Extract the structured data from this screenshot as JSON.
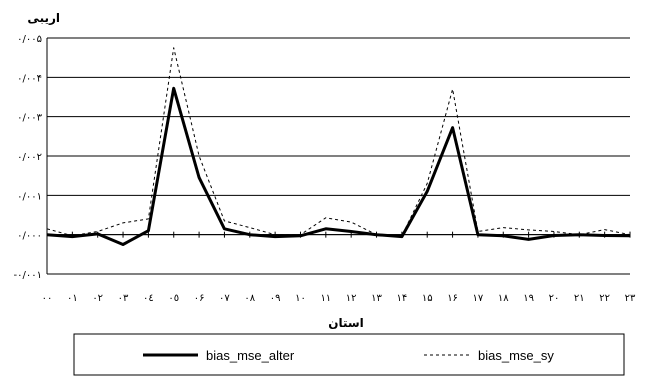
{
  "chart_data": {
    "type": "line",
    "ylabel": "اریبی",
    "xlabel": "استان",
    "x": [
      "٠٠",
      "٠١",
      "٠٢",
      "٠٣",
      "٠٤",
      "٠٥",
      "٠۶",
      "٠٧",
      "٠٨",
      "٠٩",
      "١٠",
      "١١",
      "١٢",
      "١٣",
      "١۴",
      "١۵",
      "١۶",
      "١٧",
      "١٨",
      "١٩",
      "٢٠",
      "٢١",
      "٢٢",
      "٢٣"
    ],
    "y_ticks": [
      {
        "value": 0.005,
        "label": "٠/٠٠۵"
      },
      {
        "value": 0.004,
        "label": "٠/٠٠۴"
      },
      {
        "value": 0.003,
        "label": "٠/٠٠٣"
      },
      {
        "value": 0.002,
        "label": "٠/٠٠٢"
      },
      {
        "value": 0.001,
        "label": "٠/٠٠١"
      },
      {
        "value": 0.0,
        "label": "٠/٠٠٠"
      },
      {
        "value": -0.001,
        "label": "-٠/٠٠١"
      }
    ],
    "ylim": [
      -0.001,
      0.005
    ],
    "grid": true,
    "legend_position": "bottom",
    "series": [
      {
        "name": "bias_mse_alter",
        "style": "solid",
        "color": "#000000",
        "values": [
          0.0,
          -5e-05,
          2e-05,
          -0.00025,
          0.0001,
          0.00372,
          0.00145,
          0.00015,
          0.0,
          -5e-05,
          -3e-05,
          0.00015,
          8e-05,
          0.0,
          -5e-05,
          0.0011,
          0.00272,
          0.0,
          -3e-05,
          -0.00012,
          -2e-05,
          0.0,
          -2e-05,
          -3e-05
        ]
      },
      {
        "name": "bias_mse_sy",
        "style": "dashed",
        "color": "#000000",
        "values": [
          0.00015,
          -3e-05,
          8e-05,
          0.0003,
          0.0004,
          0.00475,
          0.002,
          0.00035,
          0.00018,
          0.0,
          0.0,
          0.00043,
          0.00032,
          0.0,
          -3e-05,
          0.0013,
          0.0037,
          8e-05,
          0.00018,
          0.00012,
          8e-05,
          0.0,
          0.00013,
          0.0
        ]
      }
    ]
  }
}
